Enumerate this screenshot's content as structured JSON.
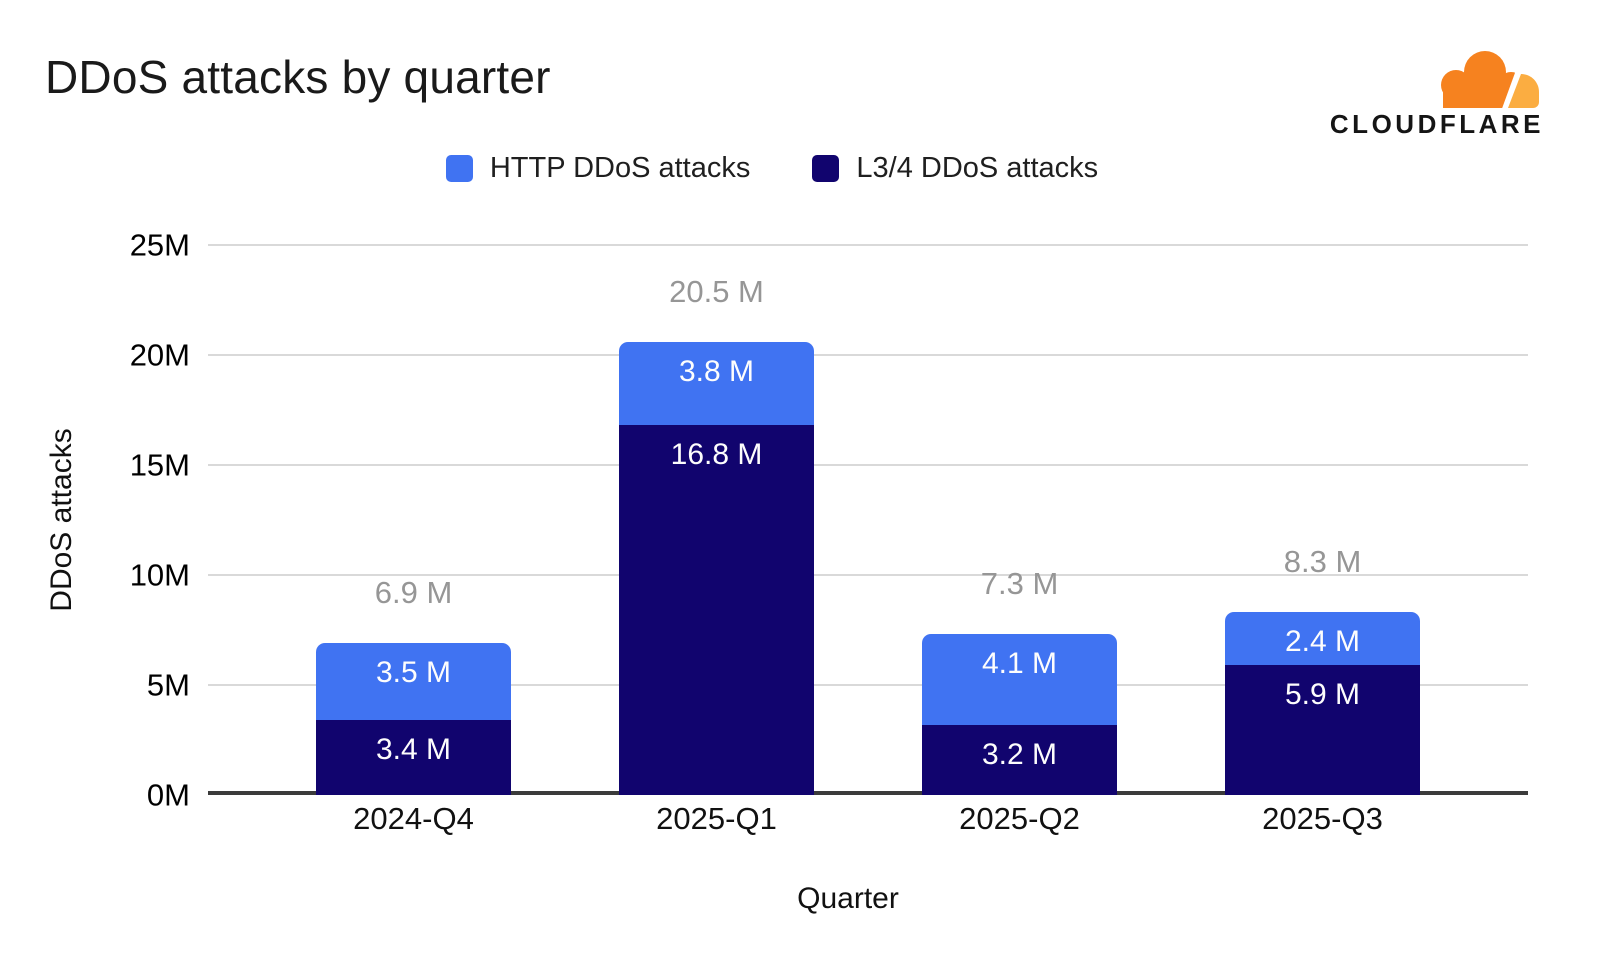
{
  "header": {
    "title": "DDoS attacks by quarter",
    "logo_text": "CLOUDFLARE"
  },
  "legend": {
    "items": [
      {
        "label": "HTTP DDoS attacks",
        "color": "#4073F2"
      },
      {
        "label": "L3/4 DDoS attacks",
        "color": "#11046E"
      }
    ]
  },
  "chart_data": {
    "type": "bar",
    "stacked": true,
    "title": "DDoS attacks by quarter",
    "xlabel": "Quarter",
    "ylabel": "DDoS attacks",
    "categories": [
      "2024-Q4",
      "2025-Q1",
      "2025-Q2",
      "2025-Q3"
    ],
    "series": [
      {
        "name": "HTTP DDoS attacks",
        "color": "#4073F2",
        "values": [
          3.5,
          3.8,
          4.1,
          2.4
        ],
        "labels": [
          "3.5 M",
          "3.8 M",
          "4.1 M",
          "2.4 M"
        ]
      },
      {
        "name": "L3/4 DDoS attacks",
        "color": "#11046E",
        "values": [
          3.4,
          16.8,
          3.2,
          5.9
        ],
        "labels": [
          "3.4 M",
          "16.8 M",
          "3.2 M",
          "5.9 M"
        ]
      }
    ],
    "totals": [
      6.9,
      20.5,
      7.3,
      8.3
    ],
    "total_labels": [
      "6.9 M",
      "20.5 M",
      "7.3 M",
      "8.3 M"
    ],
    "y_ticks": [
      "0M",
      "5M",
      "10M",
      "15M",
      "20M",
      "25M"
    ],
    "y_tick_values": [
      0,
      5,
      10,
      15,
      20,
      25
    ],
    "ylim": [
      0,
      25
    ],
    "unit": "M",
    "grid": true,
    "legend_position": "top"
  },
  "colors": {
    "http_blue": "#4073F2",
    "l34_navy": "#11046E",
    "total_label_gray": "#969696",
    "gridline": "#d9d9d9",
    "axis_line": "#3b3b3b",
    "logo_orange": "#F6821F",
    "logo_light_orange": "#FBAD41"
  }
}
